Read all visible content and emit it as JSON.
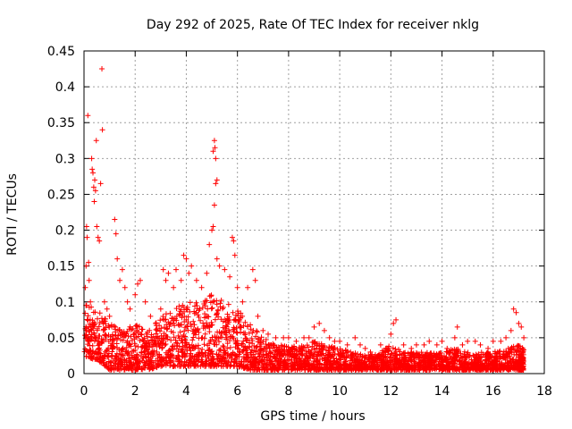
{
  "chart_data": {
    "type": "scatter",
    "title": "Day 292 of 2025, Rate Of TEC Index for receiver nklg",
    "xlabel": "GPS time / hours",
    "ylabel": "ROTI / TECUs",
    "xlim": [
      0,
      18
    ],
    "ylim": [
      0,
      0.45
    ],
    "x_ticks": [
      0,
      2,
      4,
      6,
      8,
      10,
      12,
      14,
      16,
      18
    ],
    "x_tick_labels": [
      "0",
      "2",
      "4",
      "6",
      "8",
      "10",
      "12",
      "14",
      "16",
      "18"
    ],
    "y_ticks": [
      0,
      0.05,
      0.1,
      0.15,
      0.2,
      0.25,
      0.3,
      0.35,
      0.4,
      0.45
    ],
    "y_tick_labels": [
      "0",
      "0.05",
      "0.1",
      "0.15",
      "0.2",
      "0.25",
      "0.3",
      "0.35",
      "0.4",
      "0.45"
    ],
    "grid": true,
    "marker": "+",
    "series": [
      {
        "name": "ROTI",
        "color": "#ff0000",
        "points": [
          [
            0.05,
            0.12
          ],
          [
            0.08,
            0.15
          ],
          [
            0.1,
            0.205
          ],
          [
            0.12,
            0.19
          ],
          [
            0.15,
            0.36
          ],
          [
            0.18,
            0.155
          ],
          [
            0.2,
            0.13
          ],
          [
            0.25,
            0.1
          ],
          [
            0.3,
            0.3
          ],
          [
            0.32,
            0.285
          ],
          [
            0.35,
            0.28
          ],
          [
            0.38,
            0.26
          ],
          [
            0.4,
            0.24
          ],
          [
            0.42,
            0.27
          ],
          [
            0.45,
            0.255
          ],
          [
            0.48,
            0.325
          ],
          [
            0.5,
            0.205
          ],
          [
            0.55,
            0.19
          ],
          [
            0.6,
            0.185
          ],
          [
            0.65,
            0.265
          ],
          [
            0.7,
            0.425
          ],
          [
            0.72,
            0.34
          ],
          [
            0.8,
            0.1
          ],
          [
            0.9,
            0.09
          ],
          [
            1.0,
            0.08
          ],
          [
            1.2,
            0.215
          ],
          [
            1.25,
            0.195
          ],
          [
            1.3,
            0.16
          ],
          [
            1.4,
            0.13
          ],
          [
            1.5,
            0.145
          ],
          [
            1.6,
            0.12
          ],
          [
            1.7,
            0.1
          ],
          [
            1.8,
            0.09
          ],
          [
            2.0,
            0.11
          ],
          [
            2.1,
            0.125
          ],
          [
            2.2,
            0.13
          ],
          [
            2.4,
            0.1
          ],
          [
            2.6,
            0.08
          ],
          [
            2.8,
            0.07
          ],
          [
            3.0,
            0.09
          ],
          [
            3.1,
            0.145
          ],
          [
            3.2,
            0.13
          ],
          [
            3.3,
            0.14
          ],
          [
            3.5,
            0.12
          ],
          [
            3.6,
            0.145
          ],
          [
            3.8,
            0.13
          ],
          [
            3.9,
            0.165
          ],
          [
            4.0,
            0.16
          ],
          [
            4.1,
            0.14
          ],
          [
            4.2,
            0.15
          ],
          [
            4.4,
            0.13
          ],
          [
            4.6,
            0.12
          ],
          [
            4.8,
            0.14
          ],
          [
            4.9,
            0.18
          ],
          [
            5.0,
            0.2
          ],
          [
            5.05,
            0.205
          ],
          [
            5.1,
            0.235
          ],
          [
            5.15,
            0.265
          ],
          [
            5.2,
            0.27
          ],
          [
            5.05,
            0.31
          ],
          [
            5.1,
            0.325
          ],
          [
            5.12,
            0.315
          ],
          [
            5.15,
            0.3
          ],
          [
            5.2,
            0.16
          ],
          [
            5.3,
            0.15
          ],
          [
            5.5,
            0.145
          ],
          [
            5.7,
            0.135
          ],
          [
            5.8,
            0.19
          ],
          [
            5.85,
            0.185
          ],
          [
            5.9,
            0.165
          ],
          [
            6.0,
            0.12
          ],
          [
            6.2,
            0.1
          ],
          [
            6.4,
            0.12
          ],
          [
            6.6,
            0.145
          ],
          [
            6.7,
            0.13
          ],
          [
            6.8,
            0.08
          ],
          [
            7.0,
            0.06
          ],
          [
            7.2,
            0.055
          ],
          [
            7.5,
            0.05
          ],
          [
            7.8,
            0.05
          ],
          [
            8.0,
            0.05
          ],
          [
            8.3,
            0.045
          ],
          [
            8.6,
            0.05
          ],
          [
            8.8,
            0.05
          ],
          [
            9.0,
            0.065
          ],
          [
            9.2,
            0.07
          ],
          [
            9.4,
            0.06
          ],
          [
            9.6,
            0.05
          ],
          [
            9.8,
            0.045
          ],
          [
            10.0,
            0.045
          ],
          [
            10.3,
            0.04
          ],
          [
            10.6,
            0.05
          ],
          [
            10.8,
            0.04
          ],
          [
            11.0,
            0.035
          ],
          [
            11.2,
            0.03
          ],
          [
            11.6,
            0.04
          ],
          [
            11.8,
            0.035
          ],
          [
            12.0,
            0.055
          ],
          [
            12.1,
            0.07
          ],
          [
            12.2,
            0.075
          ],
          [
            12.5,
            0.04
          ],
          [
            12.8,
            0.035
          ],
          [
            13.0,
            0.04
          ],
          [
            13.3,
            0.04
          ],
          [
            13.5,
            0.045
          ],
          [
            13.8,
            0.04
          ],
          [
            14.0,
            0.045
          ],
          [
            14.2,
            0.035
          ],
          [
            14.5,
            0.05
          ],
          [
            14.6,
            0.065
          ],
          [
            14.8,
            0.04
          ],
          [
            15.0,
            0.045
          ],
          [
            15.3,
            0.045
          ],
          [
            15.5,
            0.04
          ],
          [
            15.8,
            0.035
          ],
          [
            16.0,
            0.045
          ],
          [
            16.3,
            0.045
          ],
          [
            16.5,
            0.05
          ],
          [
            16.7,
            0.06
          ],
          [
            16.8,
            0.09
          ],
          [
            16.9,
            0.085
          ],
          [
            17.0,
            0.07
          ],
          [
            17.1,
            0.065
          ],
          [
            17.2,
            0.05
          ]
        ]
      }
    ],
    "dense_band": [
      [
        0.0,
        0.02,
        0.1
      ],
      [
        0.5,
        0.02,
        0.09
      ],
      [
        1.0,
        0.005,
        0.07
      ],
      [
        1.5,
        0.005,
        0.06
      ],
      [
        2.0,
        0.005,
        0.07
      ],
      [
        2.5,
        0.005,
        0.06
      ],
      [
        3.0,
        0.01,
        0.08
      ],
      [
        3.5,
        0.01,
        0.09
      ],
      [
        4.0,
        0.01,
        0.1
      ],
      [
        4.5,
        0.01,
        0.1
      ],
      [
        5.0,
        0.01,
        0.11
      ],
      [
        5.5,
        0.01,
        0.1
      ],
      [
        6.0,
        0.01,
        0.09
      ],
      [
        6.5,
        0.005,
        0.07
      ],
      [
        7.0,
        0.005,
        0.05
      ],
      [
        7.5,
        0.005,
        0.04
      ],
      [
        8.0,
        0.005,
        0.04
      ],
      [
        8.5,
        0.005,
        0.04
      ],
      [
        9.0,
        0.005,
        0.045
      ],
      [
        9.5,
        0.005,
        0.04
      ],
      [
        10.0,
        0.005,
        0.035
      ],
      [
        10.5,
        0.005,
        0.03
      ],
      [
        11.0,
        0.005,
        0.025
      ],
      [
        11.6,
        0.005,
        0.03
      ],
      [
        12.0,
        0.005,
        0.04
      ],
      [
        12.5,
        0.005,
        0.03
      ],
      [
        13.0,
        0.005,
        0.03
      ],
      [
        13.5,
        0.005,
        0.03
      ],
      [
        14.0,
        0.005,
        0.03
      ],
      [
        14.5,
        0.005,
        0.035
      ],
      [
        15.0,
        0.005,
        0.03
      ],
      [
        15.5,
        0.005,
        0.03
      ],
      [
        16.0,
        0.005,
        0.03
      ],
      [
        16.5,
        0.005,
        0.035
      ],
      [
        17.0,
        0.005,
        0.04
      ],
      [
        17.2,
        0.005,
        0.035
      ]
    ]
  }
}
